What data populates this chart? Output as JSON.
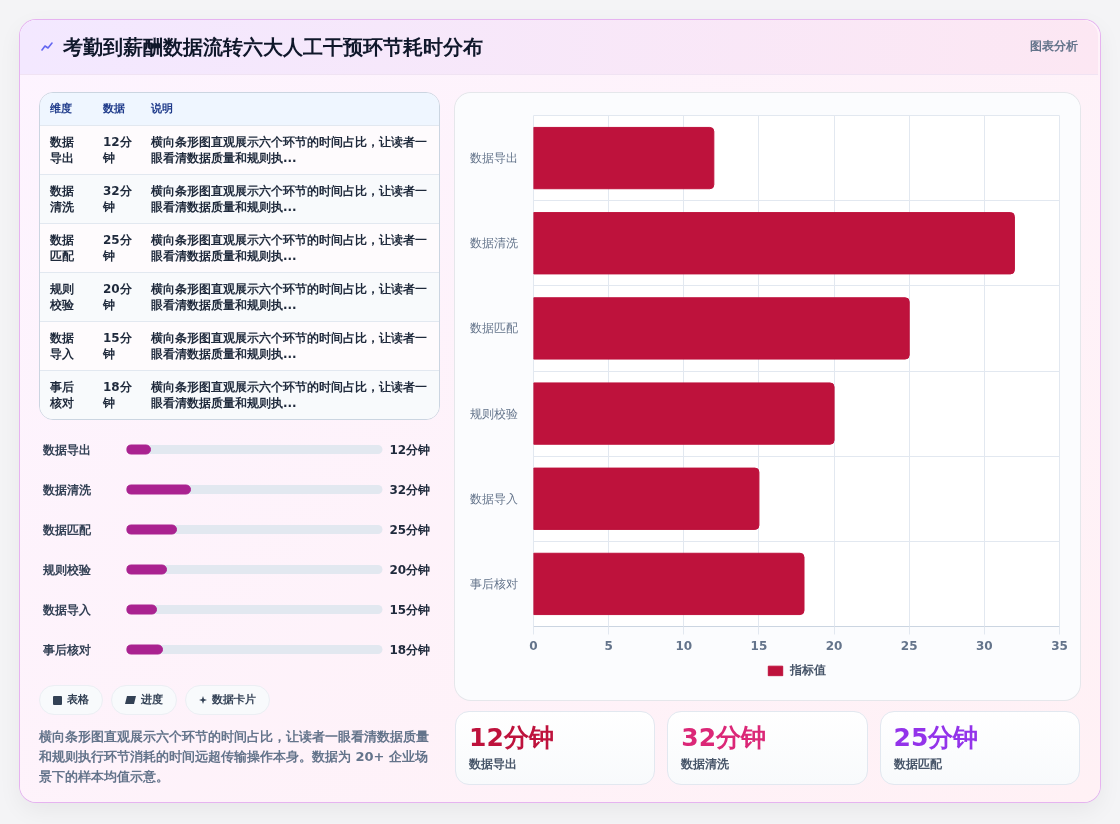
{
  "chart_data": [
    {
      "type": "other",
      "title": "考勤到薪酬数据流转六大人工干预环节耗时分布",
      "subtitle": "图表分析"
    },
    {
      "type": "other",
      "ylabel": "维度",
      "categories": [
        "数据",
        "说明"
      ],
      "y_categories": [
        "数据导出",
        "数据清洗",
        "数据匹配",
        "规则校验",
        "数据导入",
        "事后核对"
      ],
      "cell_labels": [
        [
          "12分钟",
          "横向条形图直观展示六个环节的时间占比，让读者一眼看清数据质量和规则执..."
        ],
        [
          "32分钟",
          "横向条形图直观展示六个环节的时间占比，让读者一眼看清数据质量和规则执..."
        ],
        [
          "25分钟",
          "横向条形图直观展示六个环节的时间占比，让读者一眼看清数据质量和规则执..."
        ],
        [
          "20分钟",
          "横向条形图直观展示六个环节的时间占比，让读者一眼看清数据质量和规则执..."
        ],
        [
          "15分钟",
          "横向条形图直观展示六个环节的时间占比，让读者一眼看清数据质量和规则执..."
        ],
        [
          "18分钟",
          "横向条形图直观展示六个环节的时间占比，让读者一眼看清数据质量和规则执..."
        ]
      ]
    },
    {
      "type": "bar",
      "orientation": "horizontal",
      "categories": [
        "数据导出",
        "数据清洗",
        "数据匹配",
        "规则校验",
        "数据导入",
        "事后核对"
      ],
      "values": [
        12,
        32,
        25,
        20,
        15,
        18
      ],
      "value_labels": [
        "12分钟",
        "32分钟",
        "25分钟",
        "20分钟",
        "15分钟",
        "18分钟"
      ],
      "color": "#aa2290",
      "tick_labels": "y"
    },
    {
      "type": "other",
      "categories": [
        "表格",
        "进度",
        "数据卡片"
      ],
      "annotations": [
        "横向条形图直观展示六个环节的时间占比，让读者一眼看清数据质量和规则执行环节消耗的时间远超传输操作本身。数据为 20+ 企业场景下的样本均值示意。"
      ]
    },
    {
      "type": "bar",
      "orientation": "horizontal",
      "categories": [
        "数据导出",
        "数据清洗",
        "数据匹配",
        "规则校验",
        "数据导入",
        "事后核对"
      ],
      "series": [
        {
          "name": "指标值",
          "color": "#be123c",
          "values": [
            12,
            32,
            25,
            20,
            15,
            18
          ]
        }
      ],
      "xlim": [
        0,
        35
      ],
      "xticks": [
        0,
        5,
        10,
        15,
        20,
        25,
        30,
        35
      ],
      "grid": true,
      "legend": "bottom"
    },
    {
      "type": "other",
      "categories": [
        "数据导出",
        "数据清洗",
        "数据匹配"
      ],
      "value_labels": [
        "12分钟",
        "32分钟",
        "25分钟"
      ]
    }
  ]
}
